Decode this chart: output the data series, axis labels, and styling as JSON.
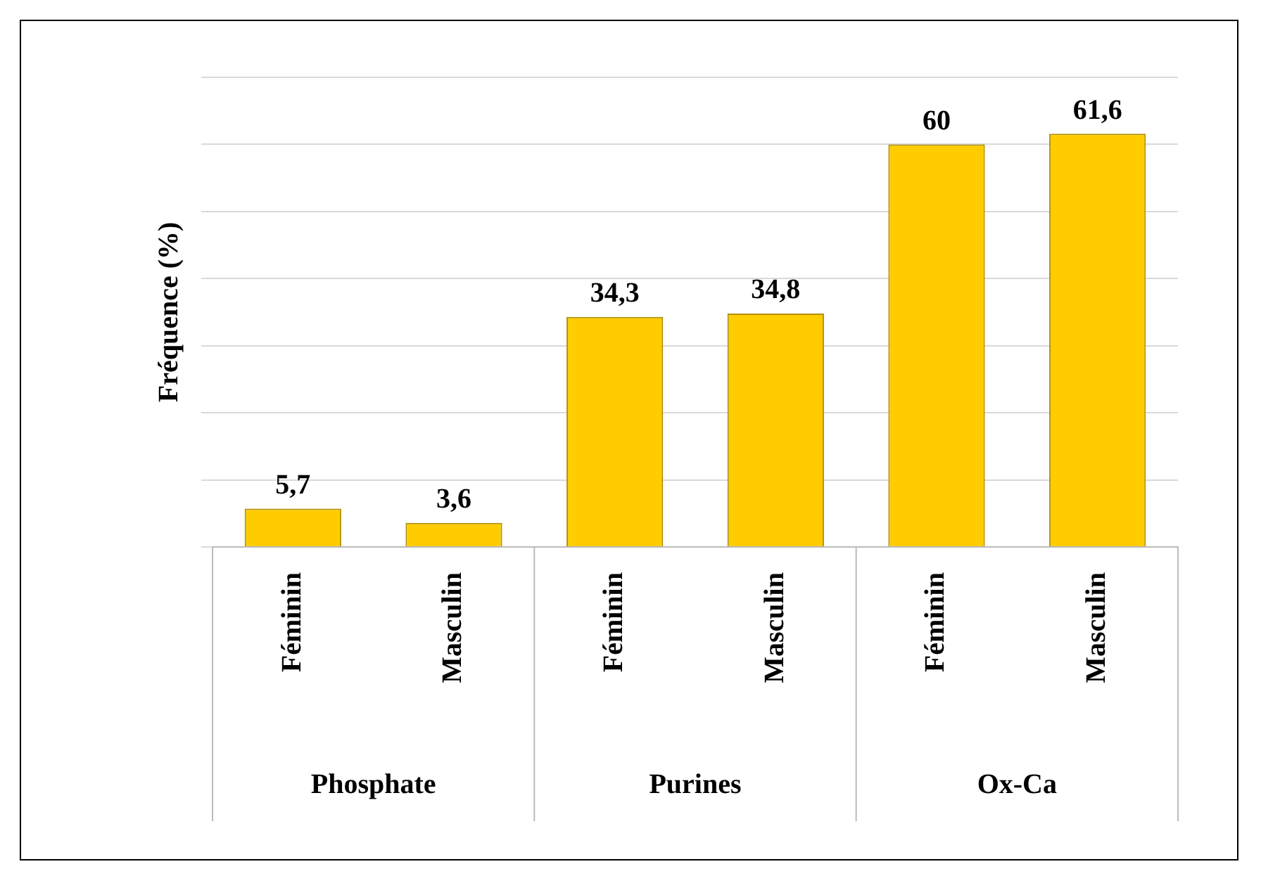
{
  "chart_data": {
    "type": "bar",
    "ylabel": "Fréquence (%)",
    "categories": [
      "Féminin",
      "Masculin",
      "Féminin",
      "Masculin",
      "Féminin",
      "Masculin"
    ],
    "values": [
      5.7,
      3.6,
      34.3,
      34.8,
      60,
      61.6
    ],
    "value_labels": [
      "5,7",
      "3,6",
      "34,3",
      "34,8",
      "60",
      "61,6"
    ],
    "color": "#ffcc00",
    "annotations": [
      "Phosphate",
      "Purines",
      "Ox-Ca"
    ],
    "ylim": [
      0,
      70
    ],
    "yticks": [
      {
        "value": 0,
        "label": null
      },
      {
        "value": 10,
        "label": null
      },
      {
        "value": 20,
        "label": null
      },
      {
        "value": 30,
        "label": null
      },
      {
        "value": 40,
        "label": null
      },
      {
        "value": 50,
        "label": null
      },
      {
        "value": 60,
        "label": null
      },
      {
        "value": 70,
        "label": null
      }
    ],
    "grid": "y",
    "legend": false
  }
}
